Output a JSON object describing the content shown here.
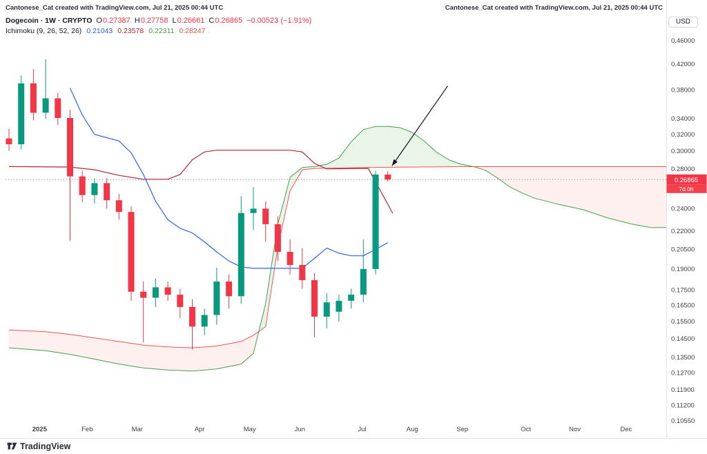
{
  "header": {
    "attribution": "Cantonese_Cat created with TradingView.com, Jul 21, 2025 00:44 UTC",
    "symbol_title": "Dogecoin · 1W · CRYPTO",
    "ohlc": {
      "o_label": "O",
      "o": "0.27387",
      "h_label": "H",
      "h": "0.27758",
      "l_label": "L",
      "l": "0.26661",
      "c_label": "C",
      "c": "0.26865",
      "change": "−0.00523 (−1.91%)"
    },
    "indicator_title": "Ichimoku (9, 26, 52, 26)",
    "indicator_values": [
      "0.21043",
      "0.23578",
      "0.22311",
      "0.28247"
    ],
    "currency_button": "USD"
  },
  "footer": {
    "brand": "TradingView"
  },
  "chart_data": {
    "type": "candlestick",
    "title": "Dogecoin · 1W · CRYPTO",
    "indicator": "Ichimoku (9, 26, 52, 26)",
    "candles": [
      [
        0.315,
        0.327,
        0.3,
        0.308
      ],
      [
        0.308,
        0.402,
        0.302,
        0.39
      ],
      [
        0.39,
        0.412,
        0.338,
        0.348
      ],
      [
        0.348,
        0.428,
        0.34,
        0.368
      ],
      [
        0.368,
        0.376,
        0.332,
        0.341
      ],
      [
        0.341,
        0.352,
        0.212,
        0.272
      ],
      [
        0.272,
        0.278,
        0.246,
        0.253
      ],
      [
        0.253,
        0.27,
        0.245,
        0.265
      ],
      [
        0.265,
        0.27,
        0.24,
        0.248
      ],
      [
        0.248,
        0.254,
        0.23,
        0.237
      ],
      [
        0.237,
        0.242,
        0.168,
        0.174
      ],
      [
        0.174,
        0.181,
        0.143,
        0.17
      ],
      [
        0.17,
        0.183,
        0.164,
        0.177
      ],
      [
        0.177,
        0.181,
        0.168,
        0.172
      ],
      [
        0.172,
        0.176,
        0.157,
        0.164
      ],
      [
        0.164,
        0.169,
        0.139,
        0.152
      ],
      [
        0.152,
        0.163,
        0.147,
        0.159
      ],
      [
        0.159,
        0.191,
        0.153,
        0.181
      ],
      [
        0.181,
        0.186,
        0.163,
        0.171
      ],
      [
        0.171,
        0.252,
        0.166,
        0.236
      ],
      [
        0.236,
        0.261,
        0.221,
        0.24
      ],
      [
        0.24,
        0.247,
        0.211,
        0.226
      ],
      [
        0.226,
        0.233,
        0.196,
        0.203
      ],
      [
        0.203,
        0.213,
        0.186,
        0.193
      ],
      [
        0.193,
        0.206,
        0.176,
        0.182
      ],
      [
        0.182,
        0.187,
        0.146,
        0.158
      ],
      [
        0.158,
        0.173,
        0.151,
        0.167
      ],
      [
        0.161,
        0.172,
        0.155,
        0.168
      ],
      [
        0.168,
        0.176,
        0.163,
        0.172
      ],
      [
        0.172,
        0.213,
        0.167,
        0.19
      ],
      [
        0.19,
        0.278,
        0.186,
        0.274
      ],
      [
        0.27387,
        0.27758,
        0.26661,
        0.26865
      ]
    ],
    "ichimoku": {
      "conversion_line": [
        [
          5,
          0.383
        ],
        [
          6,
          0.345
        ],
        [
          7,
          0.32
        ],
        [
          8,
          0.316
        ],
        [
          9,
          0.312
        ],
        [
          10,
          0.298
        ],
        [
          11,
          0.274
        ],
        [
          12,
          0.247
        ],
        [
          13,
          0.23
        ],
        [
          14,
          0.2225
        ],
        [
          15,
          0.2185
        ],
        [
          16,
          0.211
        ],
        [
          17,
          0.203
        ],
        [
          18,
          0.196
        ],
        [
          19,
          0.1915
        ],
        [
          20,
          0.1905
        ],
        [
          24,
          0.1905
        ],
        [
          25,
          0.198
        ],
        [
          26,
          0.206
        ],
        [
          27,
          0.202
        ],
        [
          28,
          0.2
        ],
        [
          29,
          0.2
        ],
        [
          30,
          0.205
        ],
        [
          31,
          0.21043
        ]
      ],
      "base_line": [
        [
          0,
          0.2825
        ],
        [
          5,
          0.282
        ],
        [
          7,
          0.279
        ],
        [
          9,
          0.273
        ],
        [
          11,
          0.269
        ],
        [
          13,
          0.269
        ],
        [
          14,
          0.274
        ],
        [
          15,
          0.29
        ],
        [
          16,
          0.299
        ],
        [
          17,
          0.301
        ],
        [
          23,
          0.301
        ],
        [
          24,
          0.299
        ],
        [
          25,
          0.286
        ],
        [
          26,
          0.28
        ],
        [
          29.4,
          0.2805
        ],
        [
          31.4,
          0.23578
        ]
      ],
      "lead_a": [
        [
          0,
          0.14
        ],
        [
          3,
          0.1385
        ],
        [
          5,
          0.1365
        ],
        [
          7,
          0.134
        ],
        [
          9,
          0.1315
        ],
        [
          11,
          0.1295
        ],
        [
          13,
          0.1285
        ],
        [
          15,
          0.128
        ],
        [
          17,
          0.129
        ],
        [
          19,
          0.1315
        ],
        [
          20,
          0.137
        ],
        [
          21,
          0.166
        ],
        [
          22,
          0.226
        ],
        [
          23,
          0.271
        ],
        [
          24,
          0.2815
        ],
        [
          25,
          0.2825
        ],
        [
          26,
          0.285
        ],
        [
          27,
          0.292
        ],
        [
          28,
          0.311
        ],
        [
          29,
          0.326
        ],
        [
          30,
          0.33
        ],
        [
          31,
          0.33
        ],
        [
          32,
          0.3285
        ],
        [
          33,
          0.3225
        ],
        [
          34,
          0.3115
        ],
        [
          35,
          0.2985
        ],
        [
          36,
          0.29
        ],
        [
          37,
          0.285
        ],
        [
          38,
          0.2825
        ],
        [
          39,
          0.2785
        ],
        [
          40,
          0.27
        ],
        [
          41,
          0.261
        ],
        [
          42,
          0.255
        ],
        [
          43,
          0.25
        ],
        [
          45,
          0.244
        ],
        [
          47,
          0.239
        ],
        [
          49,
          0.2315
        ],
        [
          51,
          0.226
        ],
        [
          52.5,
          0.2231
        ],
        [
          53.8,
          0.2231
        ]
      ],
      "lead_b": [
        [
          0,
          0.15
        ],
        [
          3,
          0.149
        ],
        [
          5,
          0.1475
        ],
        [
          7,
          0.1455
        ],
        [
          9,
          0.1435
        ],
        [
          11,
          0.1415
        ],
        [
          13,
          0.1405
        ],
        [
          15,
          0.14
        ],
        [
          17,
          0.141
        ],
        [
          19,
          0.1435
        ],
        [
          20,
          0.147
        ],
        [
          21,
          0.152
        ],
        [
          22,
          0.207
        ],
        [
          23,
          0.257
        ],
        [
          24,
          0.279
        ],
        [
          25,
          0.2805
        ],
        [
          29,
          0.2815
        ],
        [
          33,
          0.282
        ],
        [
          37,
          0.28247
        ],
        [
          53.8,
          0.28247
        ]
      ]
    },
    "last_price": {
      "value": "0.26865",
      "countdown": "7d 0h"
    },
    "price_line_value": 0.26865,
    "y_axis_ticks": [
      "0.46000",
      "0.42000",
      "0.38000",
      "0.34000",
      "0.32000",
      "0.30000",
      "0.28000",
      "0.24000",
      "0.22000",
      "0.20500",
      "0.19000",
      "0.17500",
      "0.16500",
      "0.15500",
      "0.14500",
      "0.13500",
      "0.12700",
      "0.11900",
      "0.11200",
      "0.10550"
    ],
    "x_axis_ticks": [
      {
        "label": "2025",
        "i": 2.5,
        "bold": true
      },
      {
        "label": "Feb",
        "i": 6.4
      },
      {
        "label": "Mar",
        "i": 10.5
      },
      {
        "label": "Apr",
        "i": 15.6
      },
      {
        "label": "May",
        "i": 19.7
      },
      {
        "label": "Jun",
        "i": 23.8
      },
      {
        "label": "Jul",
        "i": 28.9
      },
      {
        "label": "Aug",
        "i": 33.0
      },
      {
        "label": "Sep",
        "i": 37.1
      },
      {
        "label": "Oct",
        "i": 42.3
      },
      {
        "label": "Nov",
        "i": 46.3
      },
      {
        "label": "Dec",
        "i": 50.5
      }
    ],
    "annotation_arrow": {
      "from": {
        "i": 35.9,
        "p": 0.386
      },
      "to": {
        "i": 31.35,
        "p": 0.2835
      }
    },
    "colors": {
      "up": "#089981",
      "down": "#f23645",
      "conversion": "#2962ff",
      "base": "#b2282f",
      "lead_a": "#43a047",
      "lead_b": "#ef5350",
      "cloud_bull": "rgba(76,175,80,0.13)",
      "cloud_bear": "rgba(244,67,54,0.08)",
      "price_line": "#787b86",
      "badge": "#f23645",
      "axis_text": "#3a3e46",
      "separator": "#e0e3eb"
    }
  }
}
